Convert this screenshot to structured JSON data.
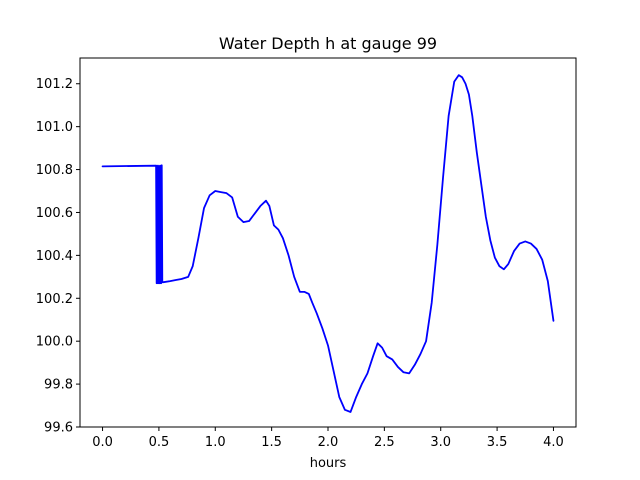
{
  "chart_data": {
    "type": "line",
    "title": "Water Depth h at gauge 99",
    "xlabel": "hours",
    "ylabel": "",
    "xlim": [
      -0.2,
      4.2
    ],
    "ylim": [
      99.6,
      101.32
    ],
    "xticks": [
      0.0,
      0.5,
      1.0,
      1.5,
      2.0,
      2.5,
      3.0,
      3.5,
      4.0
    ],
    "xtick_labels": [
      "0.0",
      "0.5",
      "1.0",
      "1.5",
      "2.0",
      "2.5",
      "3.0",
      "3.5",
      "4.0"
    ],
    "yticks": [
      99.6,
      99.8,
      100.0,
      100.2,
      100.4,
      100.6,
      100.8,
      101.0,
      101.2
    ],
    "ytick_labels": [
      "99.6",
      "99.8",
      "100.0",
      "100.2",
      "100.4",
      "100.6",
      "100.8",
      "101.0",
      "101.2"
    ],
    "grid": false,
    "series": [
      {
        "color": "#0000ff",
        "x": [
          0.0,
          0.47,
          0.475,
          0.48,
          0.485,
          0.49,
          0.495,
          0.5,
          0.505,
          0.51,
          0.515,
          0.52,
          0.525,
          0.53,
          0.535,
          0.54,
          0.6,
          0.65,
          0.7,
          0.76,
          0.8,
          0.85,
          0.9,
          0.95,
          1.0,
          1.05,
          1.1,
          1.15,
          1.2,
          1.25,
          1.3,
          1.35,
          1.4,
          1.45,
          1.48,
          1.52,
          1.56,
          1.6,
          1.65,
          1.7,
          1.75,
          1.79,
          1.83,
          1.86,
          1.9,
          1.95,
          2.0,
          2.05,
          2.1,
          2.15,
          2.2,
          2.25,
          2.3,
          2.35,
          2.4,
          2.44,
          2.48,
          2.52,
          2.57,
          2.62,
          2.67,
          2.72,
          2.77,
          2.82,
          2.87,
          2.92,
          2.97,
          3.02,
          3.07,
          3.12,
          3.16,
          3.19,
          3.22,
          3.25,
          3.28,
          3.32,
          3.36,
          3.4,
          3.44,
          3.48,
          3.52,
          3.56,
          3.6,
          3.65,
          3.7,
          3.75,
          3.8,
          3.85,
          3.9,
          3.95,
          4.0
        ],
        "values": [
          100.815,
          100.818,
          100.818,
          100.27,
          100.818,
          100.27,
          100.27,
          100.818,
          100.27,
          100.27,
          100.818,
          100.27,
          100.82,
          100.275,
          100.275,
          100.275,
          100.28,
          100.285,
          100.29,
          100.3,
          100.35,
          100.48,
          100.62,
          100.68,
          100.7,
          100.695,
          100.69,
          100.67,
          100.58,
          100.555,
          100.56,
          100.595,
          100.63,
          100.655,
          100.63,
          100.54,
          100.52,
          100.48,
          100.4,
          100.3,
          100.23,
          100.23,
          100.22,
          100.18,
          100.13,
          100.06,
          99.98,
          99.86,
          99.74,
          99.68,
          99.67,
          99.74,
          99.8,
          99.85,
          99.93,
          99.99,
          99.97,
          99.93,
          99.915,
          99.88,
          99.855,
          99.85,
          99.89,
          99.94,
          100.0,
          100.18,
          100.45,
          100.76,
          101.05,
          101.21,
          101.24,
          101.23,
          101.2,
          101.15,
          101.05,
          100.88,
          100.73,
          100.58,
          100.47,
          100.39,
          100.35,
          100.335,
          100.36,
          100.42,
          100.455,
          100.465,
          100.455,
          100.43,
          100.38,
          100.28,
          100.095
        ]
      }
    ]
  }
}
